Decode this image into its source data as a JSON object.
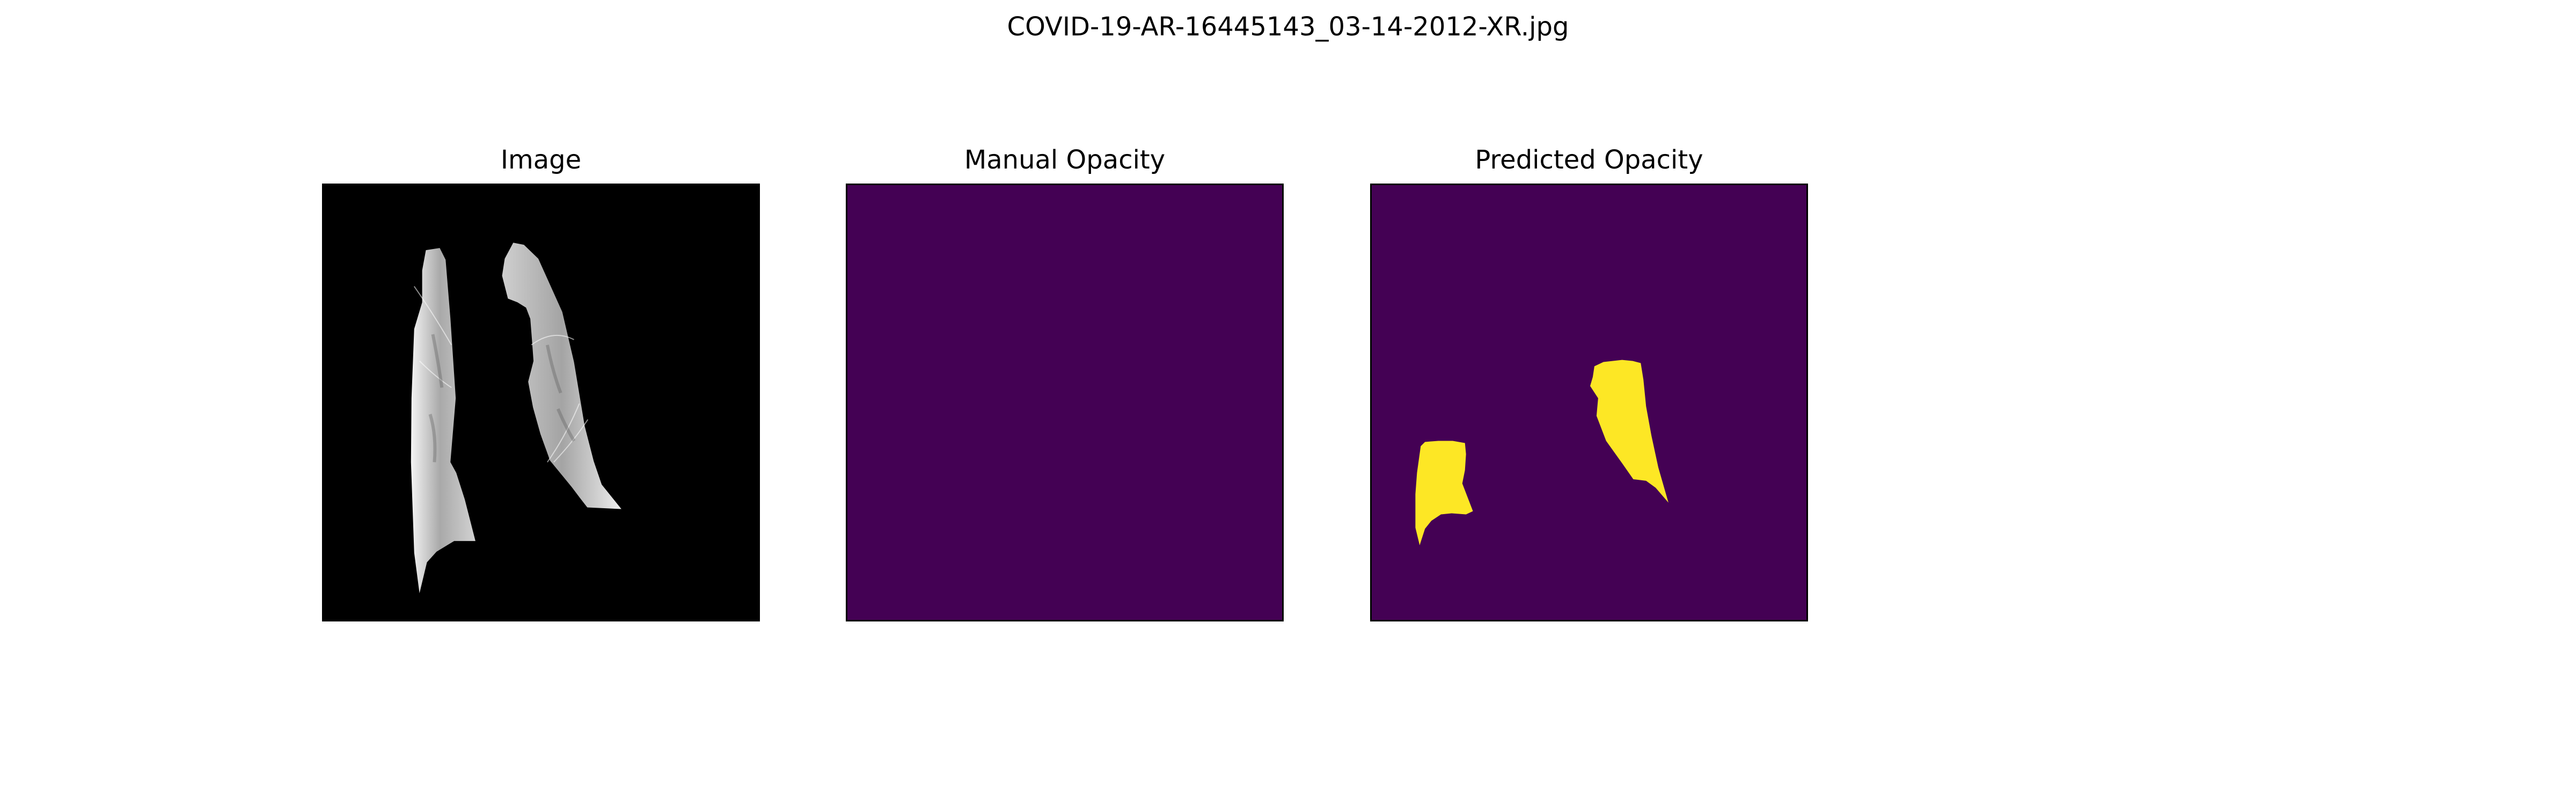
{
  "figure": {
    "title": "COVID-19-AR-16445143_03-14-2012-XR.jpg"
  },
  "panels": [
    {
      "title": "Image",
      "content": "chest-xray-lungs",
      "background": "#000000"
    },
    {
      "title": "Manual Opacity",
      "content": "empty-mask",
      "background": "#440154"
    },
    {
      "title": "Predicted Opacity",
      "content": "opacity-mask",
      "background": "#440154",
      "foreground": "#fde725"
    }
  ]
}
